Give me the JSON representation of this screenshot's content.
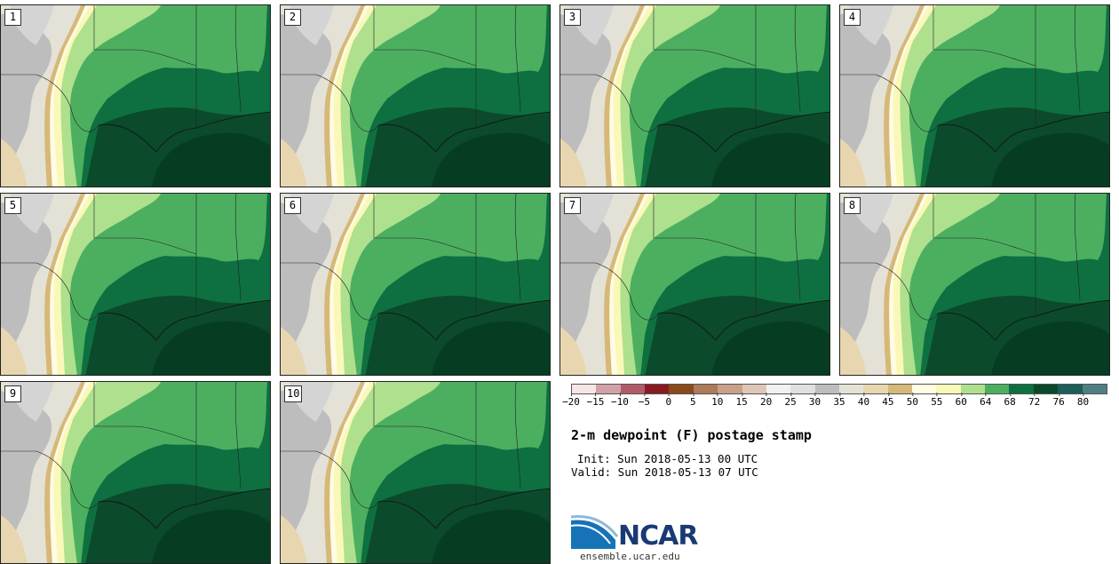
{
  "title": "2-m dewpoint (F) postage stamp",
  "init": "Init: Sun 2018-05-13 00 UTC",
  "valid": "Valid: Sun 2018-05-13 07 UTC",
  "logo_text": "NCAR",
  "site": "ensemble.ucar.edu",
  "members": [
    "1",
    "2",
    "3",
    "4",
    "5",
    "6",
    "7",
    "8",
    "9",
    "10"
  ],
  "colorbar": {
    "colors": [
      "#f6e6e6",
      "#d4a0a8",
      "#b05c68",
      "#8a1a22",
      "#8a4a1a",
      "#ad7a5a",
      "#c9a08a",
      "#e0c6b6",
      "#f1f1f1",
      "#e0e0e0",
      "#bdbdbd",
      "#e4e2d6",
      "#e8d6b0",
      "#d6b878",
      "#fffbe4",
      "#faf8b8",
      "#aee08e",
      "#4caf60",
      "#0e7040",
      "#0a4a2a",
      "#1d5e58",
      "#4f7f82"
    ],
    "tick_labels": [
      "−20",
      "−15",
      "−10",
      "−5",
      "0",
      "5",
      "10",
      "15",
      "20",
      "25",
      "30",
      "35",
      "40",
      "45",
      "50",
      "55",
      "60",
      "64",
      "68",
      "72",
      "76",
      "80"
    ]
  }
}
